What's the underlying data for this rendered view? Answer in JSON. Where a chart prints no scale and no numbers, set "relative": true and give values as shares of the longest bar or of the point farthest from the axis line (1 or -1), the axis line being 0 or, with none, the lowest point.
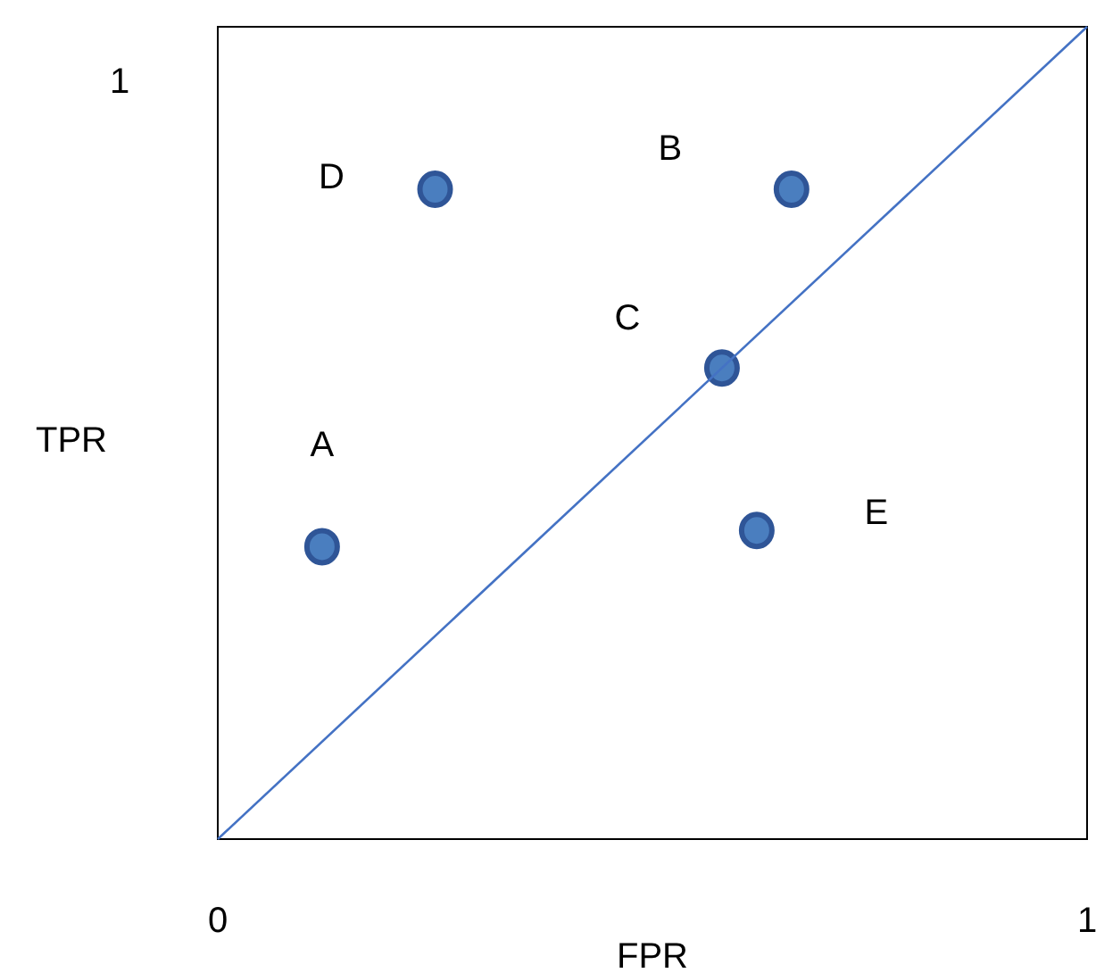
{
  "chart_data": {
    "type": "scatter",
    "xlabel": "FPR",
    "ylabel": "TPR",
    "xlim": [
      0,
      1
    ],
    "xticks": [
      0,
      1
    ],
    "relative": true,
    "series": [
      {
        "color": "#4a7ebf",
        "marker": "circle",
        "x": [
          0.12,
          0.66,
          0.58,
          0.25,
          0.62
        ],
        "values": [
          0.36,
          0.8,
          0.58,
          0.8,
          0.38
        ]
      },
      {
        "type": "line",
        "color": "#4472c4",
        "x": [
          0,
          1
        ],
        "values": [
          0,
          1
        ],
        "marker": "none"
      }
    ],
    "annotations": [
      "A",
      "B",
      "C",
      "D",
      "E",
      "1"
    ]
  }
}
